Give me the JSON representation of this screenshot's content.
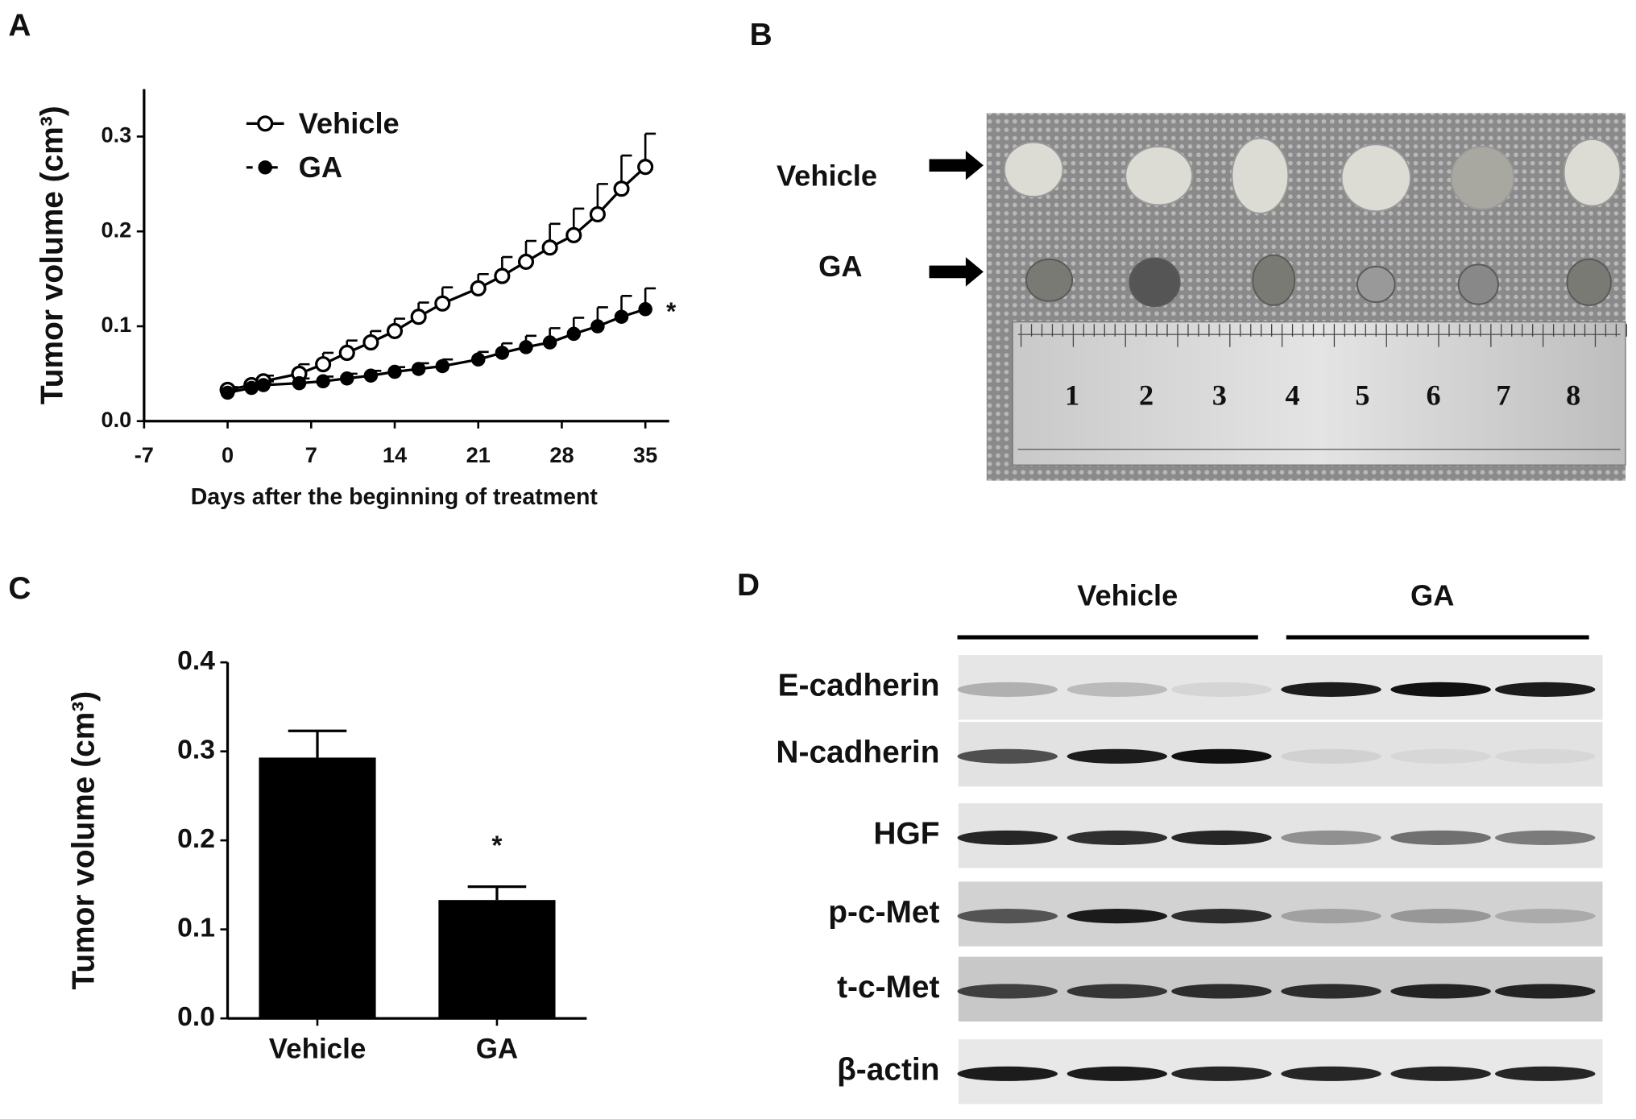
{
  "panel_labels": [
    "A",
    "B",
    "C",
    "D"
  ],
  "chart_data": [
    {
      "type": "line",
      "xlabel": "Days after the beginning of treatment",
      "ylabel": "Tumor volume (cm³)",
      "x": [
        0,
        2,
        3,
        6,
        8,
        10,
        12,
        14,
        16,
        18,
        21,
        23,
        25,
        27,
        29,
        31,
        33,
        35
      ],
      "series": [
        {
          "name": "Vehicle",
          "color": "#000000",
          "marker": "open",
          "values": [
            0.033,
            0.038,
            0.042,
            0.05,
            0.06,
            0.072,
            0.083,
            0.095,
            0.11,
            0.124,
            0.14,
            0.153,
            0.168,
            0.183,
            0.196,
            0.218,
            0.245,
            0.268
          ],
          "errors": [
            0.003,
            0.005,
            0.006,
            0.01,
            0.012,
            0.013,
            0.012,
            0.013,
            0.015,
            0.017,
            0.015,
            0.02,
            0.022,
            0.025,
            0.028,
            0.032,
            0.035,
            0.035
          ]
        },
        {
          "name": "GA",
          "color": "#000000",
          "marker": "filled",
          "values": [
            0.03,
            0.035,
            0.038,
            0.04,
            0.042,
            0.045,
            0.048,
            0.052,
            0.055,
            0.058,
            0.065,
            0.072,
            0.078,
            0.083,
            0.092,
            0.1,
            0.11,
            0.118
          ],
          "errors": [
            0.003,
            0.004,
            0.004,
            0.005,
            0.005,
            0.005,
            0.005,
            0.005,
            0.006,
            0.007,
            0.008,
            0.01,
            0.012,
            0.015,
            0.017,
            0.02,
            0.022,
            0.022
          ]
        }
      ],
      "annotation": "*",
      "xlim": [
        -7,
        37
      ],
      "xticks": [
        -7,
        0,
        7,
        14,
        21,
        28,
        35
      ],
      "ylim": [
        0,
        0.35
      ],
      "yticks": [
        {
          "value": 0,
          "label": "0.0"
        },
        0.1,
        0.2,
        0.3
      ],
      "legend": "upper left",
      "grid": false
    },
    {
      "type": "bar",
      "ylabel": "Tumor volume (cm³)",
      "categories": [
        "Vehicle",
        "GA"
      ],
      "values": [
        0.293,
        0.133
      ],
      "errors": [
        0.03,
        0.015
      ],
      "color": "#000000",
      "annotation": "*",
      "ylim": [
        0,
        0.4
      ],
      "yticks": [
        {
          "value": 0,
          "label": "0.0"
        },
        0.1,
        0.2,
        0.3,
        0.4
      ],
      "grid": false
    }
  ],
  "photo": {
    "rows": [
      "Vehicle",
      "GA"
    ],
    "ruler_marks": [
      "1",
      "2",
      "3",
      "4",
      "5",
      "6",
      "7",
      "8"
    ]
  },
  "blot": {
    "groups": [
      "Vehicle",
      "GA"
    ],
    "proteins": [
      "E-cadherin",
      "N-cadherin",
      "HGF",
      "p-c-Met",
      "t-c-Met",
      "β-actin"
    ]
  }
}
